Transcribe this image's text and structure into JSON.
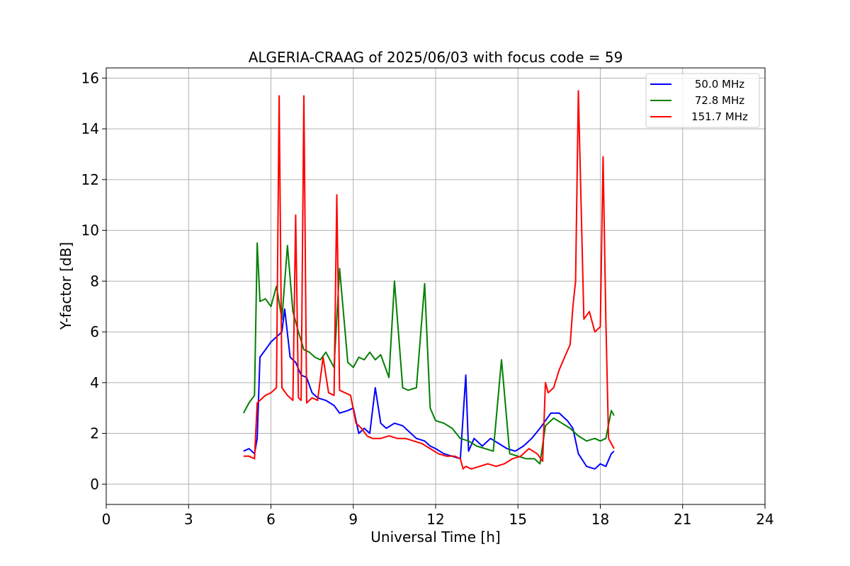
{
  "chart_data": {
    "type": "line",
    "title": "ALGERIA-CRAAG of 2025/06/03 with focus code = 59",
    "xlabel": "Universal Time [h]",
    "ylabel": "Y-factor [dB]",
    "xlim": [
      0,
      24
    ],
    "ylim": [
      -0.8,
      16.4
    ],
    "xticks": [
      0,
      3,
      6,
      9,
      12,
      15,
      18,
      21,
      24
    ],
    "yticks": [
      0,
      2,
      4,
      6,
      8,
      10,
      12,
      14,
      16
    ],
    "grid": true,
    "legend_position": "top-right",
    "series": [
      {
        "name": "50.0 MHz",
        "color": "#0000ff",
        "x": [
          5.0,
          5.2,
          5.4,
          5.5,
          5.6,
          5.8,
          6.0,
          6.2,
          6.4,
          6.5,
          6.7,
          6.9,
          7.1,
          7.3,
          7.5,
          7.7,
          8.0,
          8.3,
          8.5,
          8.8,
          9.0,
          9.2,
          9.4,
          9.6,
          9.8,
          10.0,
          10.2,
          10.5,
          10.8,
          11.0,
          11.3,
          11.6,
          11.8,
          12.0,
          12.3,
          12.6,
          12.9,
          13.1,
          13.2,
          13.4,
          13.7,
          14.0,
          14.3,
          14.6,
          14.9,
          15.2,
          15.5,
          15.8,
          16.0,
          16.2,
          16.5,
          16.8,
          17.0,
          17.2,
          17.5,
          17.8,
          18.0,
          18.2,
          18.4,
          18.5
        ],
        "y": [
          1.3,
          1.4,
          1.2,
          1.8,
          5.0,
          5.3,
          5.6,
          5.8,
          6.0,
          6.9,
          5.0,
          4.8,
          4.3,
          4.2,
          3.6,
          3.4,
          3.3,
          3.1,
          2.8,
          2.9,
          3.0,
          2.0,
          2.2,
          2.0,
          3.8,
          2.4,
          2.2,
          2.4,
          2.3,
          2.1,
          1.8,
          1.7,
          1.5,
          1.4,
          1.2,
          1.1,
          1.0,
          4.3,
          1.3,
          1.8,
          1.5,
          1.8,
          1.6,
          1.4,
          1.3,
          1.5,
          1.8,
          2.2,
          2.5,
          2.8,
          2.8,
          2.5,
          2.2,
          1.2,
          0.7,
          0.6,
          0.8,
          0.7,
          1.2,
          1.3
        ]
      },
      {
        "name": "72.8 MHz",
        "color": "#008000",
        "x": [
          5.0,
          5.2,
          5.4,
          5.5,
          5.6,
          5.8,
          6.0,
          6.2,
          6.4,
          6.6,
          6.8,
          7.0,
          7.2,
          7.4,
          7.6,
          7.8,
          8.0,
          8.3,
          8.5,
          8.8,
          9.0,
          9.2,
          9.4,
          9.6,
          9.8,
          10.0,
          10.3,
          10.5,
          10.8,
          11.0,
          11.3,
          11.6,
          11.8,
          12.0,
          12.3,
          12.6,
          12.9,
          13.2,
          13.5,
          13.8,
          14.1,
          14.4,
          14.7,
          15.0,
          15.3,
          15.6,
          15.8,
          16.0,
          16.3,
          16.6,
          16.9,
          17.2,
          17.5,
          17.8,
          18.0,
          18.2,
          18.4,
          18.5
        ],
        "y": [
          2.8,
          3.2,
          3.5,
          9.5,
          7.2,
          7.3,
          7.0,
          7.8,
          6.5,
          9.4,
          6.8,
          6.0,
          5.3,
          5.2,
          5.0,
          4.9,
          5.2,
          4.6,
          8.5,
          4.8,
          4.6,
          5.0,
          4.9,
          5.2,
          4.9,
          5.1,
          4.2,
          8.0,
          3.8,
          3.7,
          3.8,
          7.9,
          3.0,
          2.5,
          2.4,
          2.2,
          1.8,
          1.7,
          1.5,
          1.4,
          1.3,
          4.9,
          1.2,
          1.1,
          1.0,
          1.0,
          0.8,
          2.3,
          2.6,
          2.4,
          2.2,
          1.9,
          1.7,
          1.8,
          1.7,
          1.8,
          2.9,
          2.7
        ]
      },
      {
        "name": "151.7 MHz",
        "color": "#ff0000",
        "x": [
          5.0,
          5.2,
          5.4,
          5.5,
          5.6,
          5.8,
          6.0,
          6.2,
          6.3,
          6.4,
          6.6,
          6.8,
          6.9,
          7.0,
          7.1,
          7.2,
          7.3,
          7.5,
          7.7,
          7.9,
          8.1,
          8.3,
          8.4,
          8.5,
          8.7,
          8.9,
          9.1,
          9.3,
          9.5,
          9.7,
          10.0,
          10.3,
          10.6,
          10.9,
          11.2,
          11.5,
          11.8,
          12.1,
          12.4,
          12.7,
          12.9,
          13.0,
          13.1,
          13.3,
          13.6,
          13.9,
          14.2,
          14.5,
          14.8,
          15.1,
          15.4,
          15.7,
          15.9,
          16.0,
          16.1,
          16.3,
          16.5,
          16.7,
          16.9,
          17.0,
          17.1,
          17.2,
          17.4,
          17.6,
          17.8,
          18.0,
          18.1,
          18.2,
          18.3,
          18.4,
          18.5
        ],
        "y": [
          1.1,
          1.1,
          1.0,
          3.2,
          3.3,
          3.5,
          3.6,
          3.8,
          15.3,
          3.8,
          3.5,
          3.3,
          10.6,
          3.4,
          3.3,
          15.3,
          3.2,
          3.4,
          3.3,
          5.0,
          3.6,
          3.5,
          11.4,
          3.7,
          3.6,
          3.5,
          2.4,
          2.2,
          1.9,
          1.8,
          1.8,
          1.9,
          1.8,
          1.8,
          1.7,
          1.6,
          1.4,
          1.2,
          1.1,
          1.1,
          1.0,
          0.6,
          0.7,
          0.6,
          0.7,
          0.8,
          0.7,
          0.8,
          1.0,
          1.1,
          1.4,
          1.2,
          0.9,
          4.0,
          3.6,
          3.8,
          4.5,
          5.0,
          5.5,
          7.0,
          8.0,
          15.5,
          6.5,
          6.8,
          6.0,
          6.2,
          12.9,
          6.5,
          1.8,
          1.6,
          1.4
        ]
      }
    ]
  }
}
